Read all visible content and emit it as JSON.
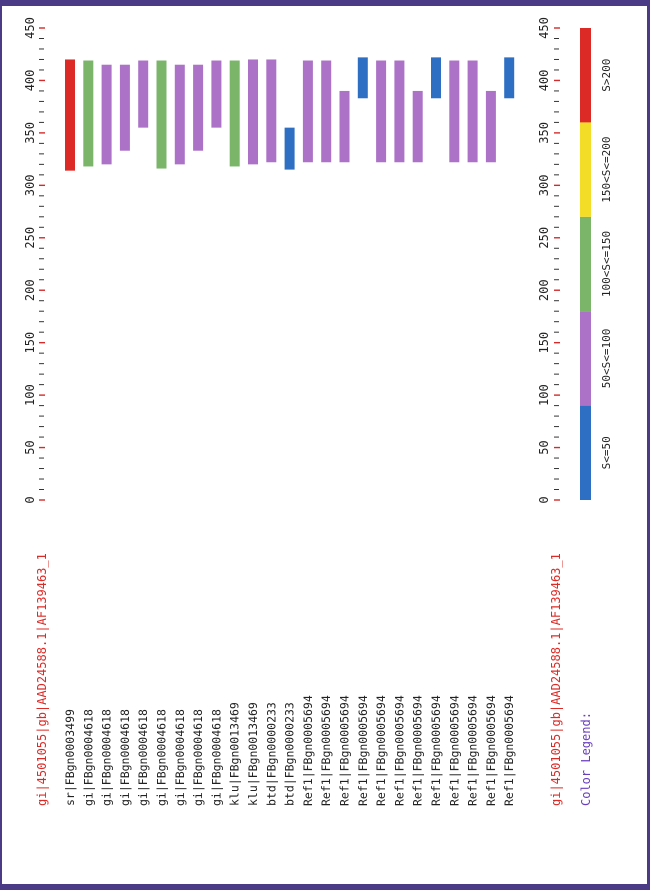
{
  "query_label": "gi|4501055|gb|AAD24588.1|AF139463_1",
  "colors": {
    "query": "#dc2a26",
    "axis": "#333333",
    "tick_red": "#d32b2b",
    "text": "#222222",
    "legend_title": "#6a3fbf"
  },
  "chart_data": {
    "type": "bar",
    "xlim": [
      0,
      450
    ],
    "xticks": [
      "0",
      "50",
      "100",
      "150",
      "200",
      "250",
      "300",
      "350",
      "400",
      "450"
    ],
    "hits": [
      {
        "label": "sr|FBgn0003499",
        "start": 314,
        "end": 420,
        "score_class": "S>200"
      },
      {
        "label": "gi|FBgn0004618",
        "start": 318,
        "end": 419,
        "score_class": "100<S<=150"
      },
      {
        "label": "gi|FBgn0004618",
        "start": 320,
        "end": 415,
        "score_class": "50<S<=100"
      },
      {
        "label": "gi|FBgn0004618",
        "start": 333,
        "end": 415,
        "score_class": "50<S<=100"
      },
      {
        "label": "gi|FBgn0004618",
        "start": 355,
        "end": 419,
        "score_class": "50<S<=100"
      },
      {
        "label": "gi|FBgn0004618",
        "start": 316,
        "end": 419,
        "score_class": "100<S<=150"
      },
      {
        "label": "gi|FBgn0004618",
        "start": 320,
        "end": 415,
        "score_class": "50<S<=100"
      },
      {
        "label": "gi|FBgn0004618",
        "start": 333,
        "end": 415,
        "score_class": "50<S<=100"
      },
      {
        "label": "gi|FBgn0004618",
        "start": 355,
        "end": 419,
        "score_class": "50<S<=100"
      },
      {
        "label": "klu|FBgn0013469",
        "start": 318,
        "end": 419,
        "score_class": "100<S<=150"
      },
      {
        "label": "klu|FBgn0013469",
        "start": 320,
        "end": 420,
        "score_class": "50<S<=100"
      },
      {
        "label": "btd|FBgn0000233",
        "start": 322,
        "end": 420,
        "score_class": "50<S<=100"
      },
      {
        "label": "btd|FBgn0000233",
        "start": 315,
        "end": 355,
        "score_class": "S<=50"
      },
      {
        "label": "Ref1|FBgn0005694",
        "start": 322,
        "end": 419,
        "score_class": "50<S<=100"
      },
      {
        "label": "Ref1|FBgn0005694",
        "start": 322,
        "end": 419,
        "score_class": "50<S<=100"
      },
      {
        "label": "Ref1|FBgn0005694",
        "start": 322,
        "end": 390,
        "score_class": "50<S<=100"
      },
      {
        "label": "Ref1|FBgn0005694",
        "start": 383,
        "end": 422,
        "score_class": "S<=50"
      },
      {
        "label": "Ref1|FBgn0005694",
        "start": 322,
        "end": 419,
        "score_class": "50<S<=100"
      },
      {
        "label": "Ref1|FBgn0005694",
        "start": 322,
        "end": 419,
        "score_class": "50<S<=100"
      },
      {
        "label": "Ref1|FBgn0005694",
        "start": 322,
        "end": 390,
        "score_class": "50<S<=100"
      },
      {
        "label": "Ref1|FBgn0005694",
        "start": 383,
        "end": 422,
        "score_class": "S<=50"
      },
      {
        "label": "Ref1|FBgn0005694",
        "start": 322,
        "end": 419,
        "score_class": "50<S<=100"
      },
      {
        "label": "Ref1|FBgn0005694",
        "start": 322,
        "end": 419,
        "score_class": "50<S<=100"
      },
      {
        "label": "Ref1|FBgn0005694",
        "start": 322,
        "end": 390,
        "score_class": "50<S<=100"
      },
      {
        "label": "Ref1|FBgn0005694",
        "start": 383,
        "end": 422,
        "score_class": "S<=50"
      }
    ],
    "legend": {
      "title": "Color Legend:",
      "items": [
        {
          "label": "S<=50",
          "color": "#2e6fc4"
        },
        {
          "label": "50<S<=100",
          "color": "#ac72c7"
        },
        {
          "label": "100<S<=150",
          "color": "#7bb56a"
        },
        {
          "label": "150<S<=200",
          "color": "#f3dd26"
        },
        {
          "label": "S>200",
          "color": "#dc2a26"
        }
      ]
    }
  }
}
